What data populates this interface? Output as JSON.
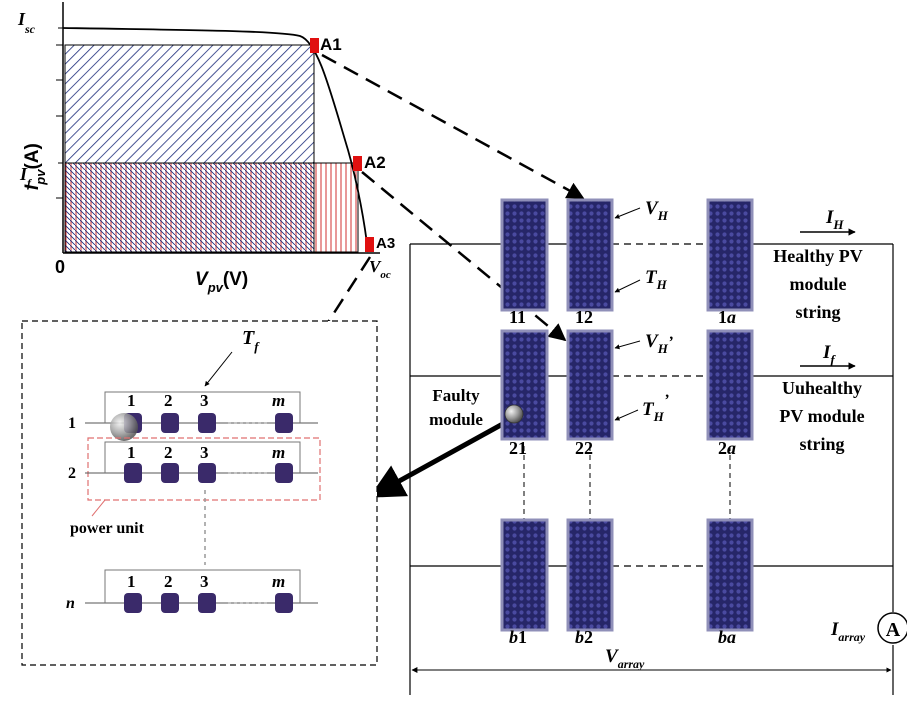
{
  "colors": {
    "panel_fill": "#2a2a70",
    "panel_border": "#8f8fb8",
    "cell_dot": "#5a5ab0",
    "blue_hatch": "#1a2a7a",
    "red_hatch": "#d03030",
    "marker_red": "#e01010",
    "ink": "#000000",
    "power_unit_border": "#e07070",
    "module_block": "#3a2a6a"
  },
  "iv_chart": {
    "y_axis_label": "I_pv(A)",
    "y_axis_label_main": "I",
    "y_axis_label_sub": "pv",
    "y_axis_label_unit": "(A)",
    "x_axis_label_main": "V",
    "x_axis_label_sub": "pv",
    "x_axis_label_unit": "(V)",
    "origin": "0",
    "isc_main": "I",
    "isc_sub": "sc",
    "if_main": "I",
    "if_sub": "f",
    "voc_main": "V",
    "voc_sub": "oc",
    "points": [
      "A1",
      "A2",
      "A3"
    ]
  },
  "array": {
    "healthy_current_main": "I",
    "healthy_current_sub": "H",
    "fault_current_main": "I",
    "fault_current_sub": "f",
    "vh_main": "V",
    "vh_sub": "H",
    "th_main": "T",
    "th_sub": "H",
    "vh_fault_main": "V",
    "vh_fault_sub": "H",
    "vh_fault_prime": "’",
    "th_fault_main": "T",
    "th_fault_sub": "H",
    "th_fault_prime": "’",
    "healthy_string_label": [
      "Healthy PV",
      "module",
      "string"
    ],
    "unhealthy_string_label": [
      "Uuhealthy",
      "PV module",
      "string"
    ],
    "faulty_module_label": [
      "Faulty",
      "module"
    ],
    "module_labels": {
      "m11": "11",
      "m12": "12",
      "m1a_num": "1",
      "m1a_letter": "a",
      "m21": "21",
      "m22": "22",
      "m2a_num": "2",
      "m2a_letter": "a",
      "mb1_letter": "b",
      "mb1_num": "1",
      "mb2_letter": "b",
      "mb2_num": "2",
      "mba": "ba"
    },
    "iarray_main": "I",
    "iarray_sub": "array",
    "ammeter": "A",
    "varray_main": "V",
    "varray_sub": "array"
  },
  "inset": {
    "tf_main": "T",
    "tf_sub": "f",
    "rows": [
      "1",
      "2",
      "n"
    ],
    "columns": [
      "1",
      "2",
      "3",
      "m"
    ],
    "power_unit_label": "power unit"
  }
}
